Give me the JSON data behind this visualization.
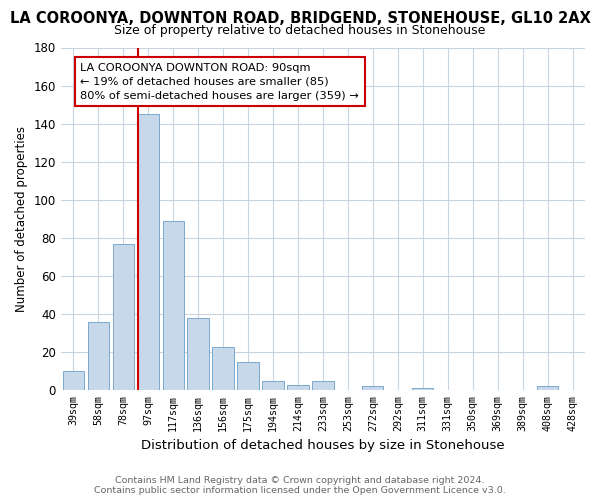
{
  "title": "LA COROONYA, DOWNTON ROAD, BRIDGEND, STONEHOUSE, GL10 2AX",
  "subtitle": "Size of property relative to detached houses in Stonehouse",
  "xlabel": "Distribution of detached houses by size in Stonehouse",
  "ylabel": "Number of detached properties",
  "bar_labels": [
    "39sqm",
    "58sqm",
    "78sqm",
    "97sqm",
    "117sqm",
    "136sqm",
    "156sqm",
    "175sqm",
    "194sqm",
    "214sqm",
    "233sqm",
    "253sqm",
    "272sqm",
    "292sqm",
    "311sqm",
    "331sqm",
    "350sqm",
    "369sqm",
    "389sqm",
    "408sqm",
    "428sqm"
  ],
  "bar_values": [
    10,
    36,
    77,
    145,
    89,
    38,
    23,
    15,
    5,
    3,
    5,
    0,
    2,
    0,
    1,
    0,
    0,
    0,
    0,
    2,
    0
  ],
  "bar_color": "#c8d8eb",
  "bar_edgecolor": "#7aa8cc",
  "vline_color": "#cc0000",
  "annotation_line1": "LA COROONYA DOWNTON ROAD: 90sqm",
  "annotation_line2": "← 19% of detached houses are smaller (85)",
  "annotation_line3": "80% of semi-detached houses are larger (359) →",
  "ylim": [
    0,
    180
  ],
  "yticks": [
    0,
    20,
    40,
    60,
    80,
    100,
    120,
    140,
    160,
    180
  ],
  "footer1": "Contains HM Land Registry data © Crown copyright and database right 2024.",
  "footer2": "Contains public sector information licensed under the Open Government Licence v3.0.",
  "bg_color": "#ffffff",
  "plot_bg_color": "#ffffff",
  "grid_color": "#c8d4e0"
}
